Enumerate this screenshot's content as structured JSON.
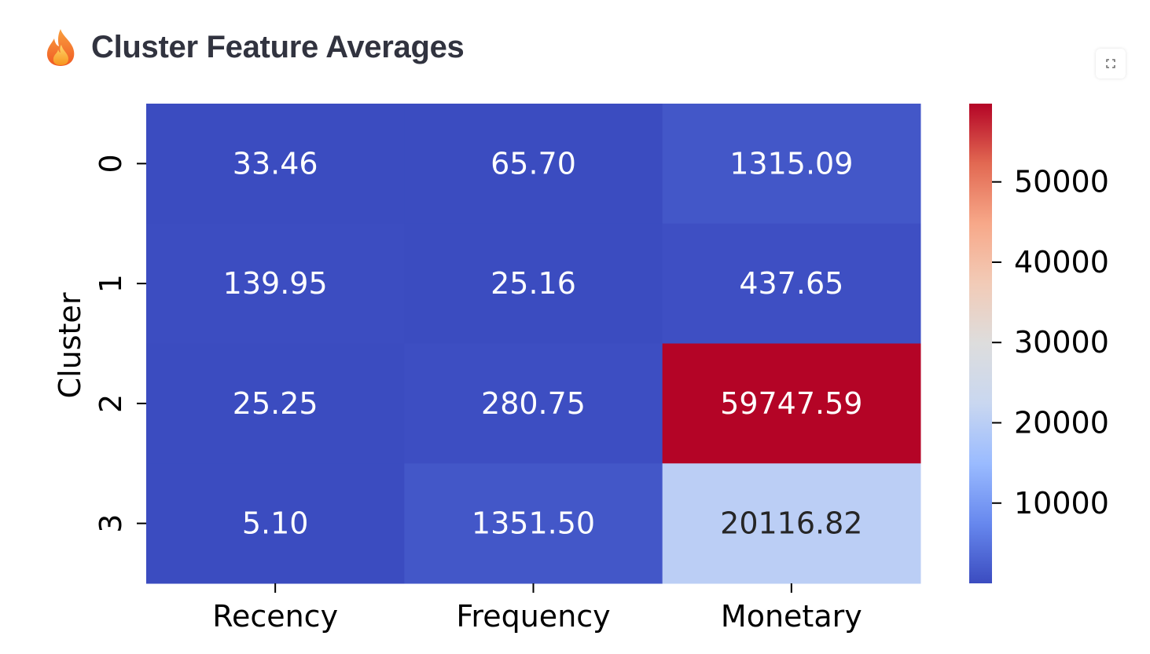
{
  "header": {
    "icon": "flame-icon",
    "title": "Cluster Feature Averages"
  },
  "toolbar": {
    "fullscreen_icon": "fullscreen-icon"
  },
  "chart_data": {
    "type": "heatmap",
    "title": "",
    "xlabel": "",
    "ylabel": "Cluster",
    "x_categories": [
      "Recency",
      "Frequency",
      "Monetary"
    ],
    "y_categories": [
      "0",
      "1",
      "2",
      "3"
    ],
    "values": [
      [
        33.46,
        65.7,
        1315.09
      ],
      [
        139.95,
        25.16,
        437.65
      ],
      [
        25.25,
        280.75,
        59747.59
      ],
      [
        5.1,
        1351.5,
        20116.82
      ]
    ],
    "value_labels": [
      [
        "33.46",
        "65.70",
        "1315.09"
      ],
      [
        "139.95",
        "25.16",
        "437.65"
      ],
      [
        "25.25",
        "280.75",
        "59747.59"
      ],
      [
        "5.10",
        "1351.50",
        "20116.82"
      ]
    ],
    "colormap": "coolwarm",
    "colormap_stops": [
      "#3b4cc0",
      "#6788ee",
      "#9abbff",
      "#c9d7f0",
      "#dddddd",
      "#f2cbb7",
      "#f7a889",
      "#e26952",
      "#b40426"
    ],
    "color_range": [
      5.1,
      59747.59
    ],
    "colorbar": {
      "ticks": [
        10000,
        20000,
        30000,
        40000,
        50000
      ],
      "tick_labels": [
        "10000",
        "20000",
        "30000",
        "40000",
        "50000"
      ]
    }
  }
}
